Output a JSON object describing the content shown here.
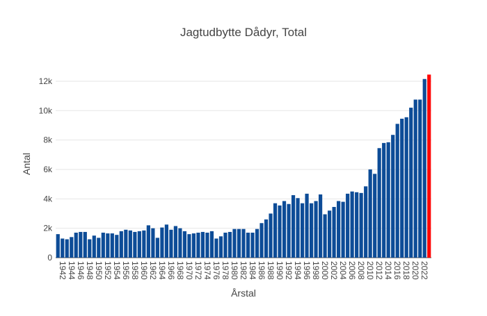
{
  "chart_data": {
    "type": "bar",
    "title": "Jagtudbytte Dådyr, Total",
    "xlabel": "Årstal",
    "ylabel": "Antal",
    "ylim": [
      0,
      12800
    ],
    "y_ticks": [
      0,
      2000,
      4000,
      6000,
      8000,
      10000,
      12000
    ],
    "y_tick_labels": [
      "0",
      "2k",
      "4k",
      "6k",
      "8k",
      "10k",
      "12k"
    ],
    "x_tick_labels": [
      "1942",
      "1944",
      "1946",
      "1948",
      "1950",
      "1952",
      "1954",
      "1956",
      "1958",
      "1960",
      "1962",
      "1964",
      "1966",
      "1968",
      "1970",
      "1972",
      "1974",
      "1976",
      "1978",
      "1980",
      "1982",
      "1984",
      "1986",
      "1988",
      "1990",
      "1992",
      "1994",
      "1996",
      "1998",
      "2000",
      "2002",
      "2004",
      "2006",
      "2008",
      "2010",
      "2012",
      "2014",
      "2016",
      "2018",
      "2020",
      "2022"
    ],
    "grid": true,
    "legend": "none",
    "bar_color": "#0d4c97",
    "highlight_color": "#ff0000",
    "highlight_year": 2023,
    "categories": [
      1941,
      1942,
      1943,
      1944,
      1945,
      1946,
      1947,
      1948,
      1949,
      1950,
      1951,
      1952,
      1953,
      1954,
      1955,
      1956,
      1957,
      1958,
      1959,
      1960,
      1961,
      1962,
      1963,
      1964,
      1965,
      1966,
      1967,
      1968,
      1969,
      1970,
      1971,
      1972,
      1973,
      1974,
      1975,
      1976,
      1977,
      1978,
      1979,
      1980,
      1981,
      1982,
      1983,
      1984,
      1985,
      1986,
      1987,
      1988,
      1989,
      1990,
      1991,
      1992,
      1993,
      1994,
      1995,
      1996,
      1997,
      1998,
      1999,
      2000,
      2001,
      2002,
      2003,
      2004,
      2005,
      2006,
      2007,
      2008,
      2009,
      2010,
      2011,
      2012,
      2013,
      2014,
      2015,
      2016,
      2017,
      2018,
      2019,
      2020,
      2021,
      2022,
      2023
    ],
    "values": [
      1600,
      1300,
      1250,
      1400,
      1700,
      1750,
      1750,
      1250,
      1500,
      1350,
      1700,
      1650,
      1650,
      1550,
      1800,
      1900,
      1850,
      1750,
      1800,
      1850,
      2200,
      2000,
      1350,
      2050,
      2250,
      1900,
      2150,
      2000,
      1800,
      1600,
      1650,
      1700,
      1750,
      1700,
      1800,
      1300,
      1450,
      1700,
      1750,
      1950,
      1950,
      1950,
      1700,
      1700,
      1950,
      2350,
      2600,
      3000,
      3700,
      3550,
      3850,
      3650,
      4250,
      4050,
      3700,
      4350,
      3700,
      3850,
      4300,
      2950,
      3200,
      3450,
      3850,
      3800,
      4350,
      4500,
      4450,
      4400,
      4850,
      6000,
      5700,
      7450,
      7800,
      7850,
      8350,
      9100,
      9450,
      9550,
      10200,
      10750,
      10750,
      12150,
      12450
    ]
  }
}
